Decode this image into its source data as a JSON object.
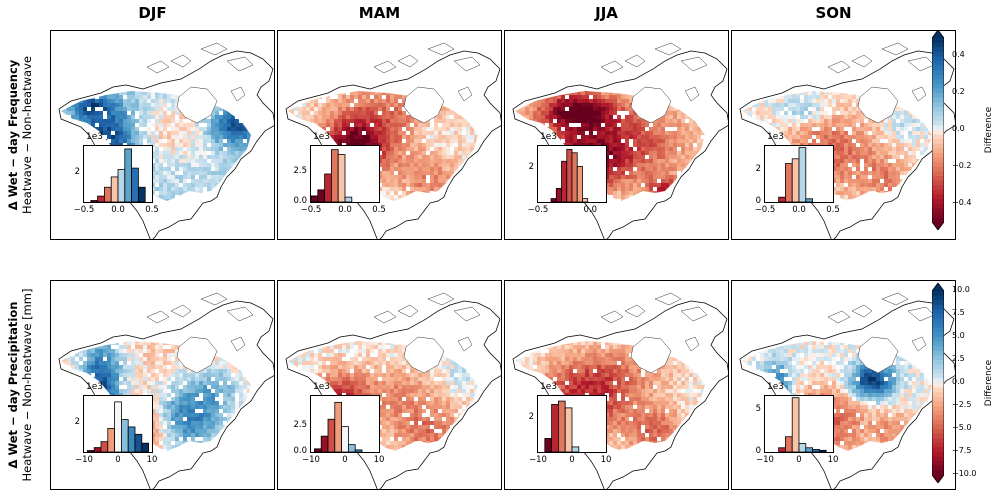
{
  "columns": [
    "DJF",
    "MAM",
    "JJA",
    "SON"
  ],
  "rows": [
    {
      "title_bold": "Δ Wet − day Frequency",
      "title_sub": "Heatwave − Non-heatwave",
      "colorbar": {
        "label": "Difference",
        "ticks": [
          "0.4",
          "0.2",
          "0.0",
          "−0.2",
          "−0.4"
        ],
        "tick_values": [
          0.4,
          0.2,
          0.0,
          -0.2,
          -0.4
        ],
        "range": [
          -0.5,
          0.5
        ]
      }
    },
    {
      "title_bold": "Δ Wet − day Precipitation",
      "title_sub": "Heatwave − Non-heatwave [mm]",
      "colorbar": {
        "label": "Difference",
        "ticks": [
          "10.0",
          "7.5",
          "5.0",
          "2.5",
          "0.0",
          "−2.5",
          "−5.0",
          "−7.5",
          "−10.0"
        ],
        "tick_values": [
          10,
          7.5,
          5,
          2.5,
          0,
          -2.5,
          -5,
          -7.5,
          -10
        ],
        "range": [
          -10,
          10
        ]
      }
    }
  ],
  "chart_data": [
    {
      "type": "bar",
      "row": 0,
      "column": "DJF",
      "sci": "1e3",
      "x_range": [
        -0.5,
        0.5
      ],
      "y_max": 3.8,
      "y_ticks": [
        "2"
      ],
      "x_ticks": [
        "−0.5",
        "0.0",
        "0.5"
      ],
      "bin_centers": [
        -0.35,
        -0.25,
        -0.15,
        -0.05,
        0.05,
        0.15,
        0.25,
        0.35
      ],
      "values": [
        0.1,
        0.4,
        1.0,
        1.7,
        2.2,
        3.6,
        2.3,
        1.0
      ]
    },
    {
      "type": "bar",
      "row": 0,
      "column": "MAM",
      "sci": "1e3",
      "x_range": [
        -0.5,
        0.5
      ],
      "y_max": 4.6,
      "y_ticks": [
        "2.5",
        "0.0"
      ],
      "x_ticks": [
        "−0.5",
        "0.0",
        "0.5"
      ],
      "bin_centers": [
        -0.45,
        -0.35,
        -0.25,
        -0.15,
        -0.05,
        0.05
      ],
      "values": [
        0.5,
        1.0,
        2.3,
        4.3,
        3.9,
        0.4
      ]
    },
    {
      "type": "bar",
      "row": 0,
      "column": "JJA",
      "sci": "1e3",
      "x_range": [
        -0.5,
        0.15
      ],
      "y_max": 3.3,
      "y_ticks": [
        "2"
      ],
      "x_ticks": [
        "−0.5",
        "0.0"
      ],
      "bin_centers": [
        -0.35,
        -0.3,
        -0.25,
        -0.2,
        -0.15,
        -0.1,
        -0.05
      ],
      "values": [
        0.2,
        0.8,
        2.4,
        3.1,
        2.9,
        2.1,
        0.2
      ]
    },
    {
      "type": "bar",
      "row": 0,
      "column": "SON",
      "sci": "1e3",
      "x_range": [
        -0.5,
        0.5
      ],
      "y_max": 3.5,
      "y_ticks": [
        "2",
        "0"
      ],
      "x_ticks": [
        "−0.5",
        "0.0",
        "0.5"
      ],
      "bin_centers": [
        -0.25,
        -0.15,
        -0.05,
        0.05,
        0.15
      ],
      "values": [
        0.3,
        2.4,
        2.7,
        3.4,
        0.2
      ]
    },
    {
      "type": "bar",
      "row": 1,
      "column": "DJF",
      "sci": "1e3",
      "x_range": [
        -10,
        10
      ],
      "y_max": 3.8,
      "y_ticks": [
        "2"
      ],
      "x_ticks": [
        "−10",
        "0",
        "10"
      ],
      "bin_centers": [
        -8,
        -6,
        -4,
        -2,
        0,
        2,
        4,
        6,
        8
      ],
      "values": [
        0.1,
        0.3,
        0.7,
        1.6,
        3.4,
        2.2,
        1.7,
        1.2,
        0.6
      ]
    },
    {
      "type": "bar",
      "row": 1,
      "column": "MAM",
      "sci": "1e3",
      "x_range": [
        -10,
        10
      ],
      "y_max": 5.3,
      "y_ticks": [
        "2.5",
        "0.0"
      ],
      "x_ticks": [
        "−10",
        "0",
        "10"
      ],
      "bin_centers": [
        -8,
        -6,
        -4,
        -2,
        0,
        2,
        4
      ],
      "values": [
        0.3,
        1.5,
        3.1,
        4.7,
        2.4,
        0.7,
        0.2
      ]
    },
    {
      "type": "bar",
      "row": 1,
      "column": "JJA",
      "sci": "1e3",
      "x_range": [
        -10,
        10
      ],
      "y_max": 3.3,
      "y_ticks": [
        "2"
      ],
      "x_ticks": [
        "−10",
        "0",
        "10"
      ],
      "bin_centers": [
        -7,
        -5,
        -3,
        -1,
        1
      ],
      "values": [
        0.8,
        2.8,
        3.0,
        2.6,
        0.3
      ]
    },
    {
      "type": "bar",
      "row": 1,
      "column": "SON",
      "sci": "1e3",
      "x_range": [
        -10,
        10
      ],
      "y_max": 6.6,
      "y_ticks": [
        "5",
        "0"
      ],
      "x_ticks": [
        "−10",
        "0",
        "10"
      ],
      "bin_centers": [
        -5,
        -3,
        -1,
        1,
        3,
        5,
        7
      ],
      "values": [
        0.5,
        1.8,
        6.4,
        1.0,
        0.5,
        0.3,
        0.2
      ]
    }
  ]
}
